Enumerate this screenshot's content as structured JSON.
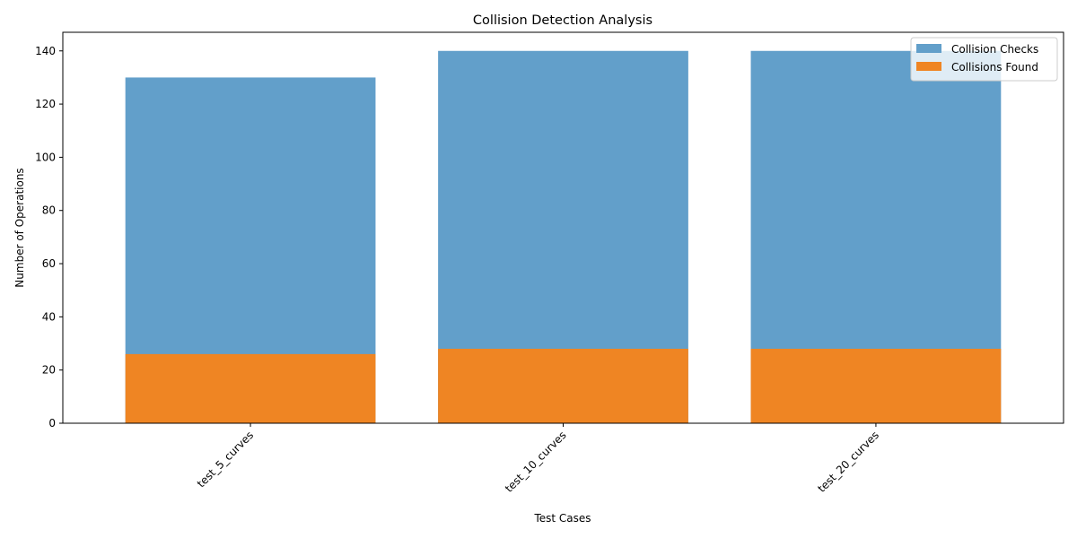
{
  "chart_data": {
    "type": "bar",
    "title": "Collision Detection Analysis",
    "xlabel": "Test Cases",
    "ylabel": "Number of Operations",
    "categories": [
      "test_5_curves",
      "test_10_curves",
      "test_20_curves"
    ],
    "series": [
      {
        "name": "Collision Checks",
        "values": [
          130,
          140,
          140
        ],
        "color": "#629fca"
      },
      {
        "name": "Collisions Found",
        "values": [
          26,
          28,
          28
        ],
        "color": "#ef8523"
      }
    ],
    "ylim": [
      0,
      147
    ],
    "yticks": [
      0,
      20,
      40,
      60,
      80,
      100,
      120,
      140
    ],
    "ytick_labels": [
      "0",
      "20",
      "40",
      "60",
      "80",
      "100",
      "120",
      "140"
    ],
    "grid": false,
    "legend_position": "top-right",
    "xtick_rotation": 45,
    "overlay": true
  }
}
